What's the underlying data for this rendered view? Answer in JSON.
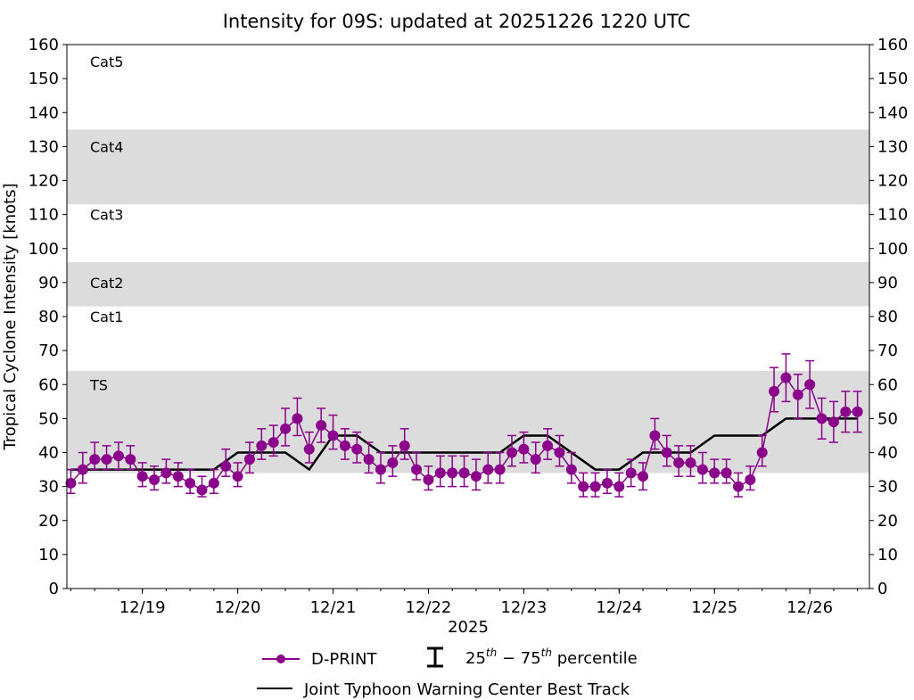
{
  "chart_data": {
    "type": "line",
    "title": "Intensity for 09S: updated at 20251226 1220 UTC",
    "xlabel": "2025",
    "ylabel": "Tropical Cyclone Intensity [knots]",
    "ylim": [
      0,
      160
    ],
    "xlim": [
      "2025-12-18 05:00",
      "2025-12-26 15:00"
    ],
    "yticks": [
      0,
      10,
      20,
      30,
      40,
      50,
      60,
      70,
      80,
      90,
      100,
      110,
      120,
      130,
      140,
      150,
      160
    ],
    "xticks": [
      {
        "t": "2025-12-19 00:00",
        "label": "12/19"
      },
      {
        "t": "2025-12-20 00:00",
        "label": "12/20"
      },
      {
        "t": "2025-12-21 00:00",
        "label": "12/21"
      },
      {
        "t": "2025-12-22 00:00",
        "label": "12/22"
      },
      {
        "t": "2025-12-23 00:00",
        "label": "12/23"
      },
      {
        "t": "2025-12-24 00:00",
        "label": "12/24"
      },
      {
        "t": "2025-12-25 00:00",
        "label": "12/25"
      },
      {
        "t": "2025-12-26 00:00",
        "label": "12/26"
      }
    ],
    "grid": false,
    "legend_placement": "bottom",
    "category_bands": [
      {
        "label": "TS",
        "range": [
          34,
          64
        ],
        "shaded": true,
        "label_at": 60
      },
      {
        "label": "Cat1",
        "range": [
          64,
          83
        ],
        "shaded": false,
        "label_at": 80
      },
      {
        "label": "Cat2",
        "range": [
          83,
          96
        ],
        "shaded": true,
        "label_at": 90
      },
      {
        "label": "Cat3",
        "range": [
          96,
          113
        ],
        "shaded": false,
        "label_at": 110
      },
      {
        "label": "Cat4",
        "range": [
          113,
          135
        ],
        "shaded": true,
        "label_at": 130
      },
      {
        "label": "Cat5",
        "range": [
          135,
          160
        ],
        "shaded": false,
        "label_at": 155
      }
    ],
    "colors": {
      "dprint": "#8b008b",
      "best_track": "#000000",
      "band": "#dcdcdc"
    },
    "series": [
      {
        "name": "D-PRINT",
        "style": "line-marker-errorbar",
        "t": [
          "2025-12-18 06:00",
          "2025-12-18 09:00",
          "2025-12-18 12:00",
          "2025-12-18 15:00",
          "2025-12-18 18:00",
          "2025-12-18 21:00",
          "2025-12-19 00:00",
          "2025-12-19 03:00",
          "2025-12-19 06:00",
          "2025-12-19 09:00",
          "2025-12-19 12:00",
          "2025-12-19 15:00",
          "2025-12-19 18:00",
          "2025-12-19 21:00",
          "2025-12-20 00:00",
          "2025-12-20 03:00",
          "2025-12-20 06:00",
          "2025-12-20 09:00",
          "2025-12-20 12:00",
          "2025-12-20 15:00",
          "2025-12-20 18:00",
          "2025-12-20 21:00",
          "2025-12-21 00:00",
          "2025-12-21 03:00",
          "2025-12-21 06:00",
          "2025-12-21 09:00",
          "2025-12-21 12:00",
          "2025-12-21 15:00",
          "2025-12-21 18:00",
          "2025-12-21 21:00",
          "2025-12-22 00:00",
          "2025-12-22 03:00",
          "2025-12-22 06:00",
          "2025-12-22 09:00",
          "2025-12-22 12:00",
          "2025-12-22 15:00",
          "2025-12-22 18:00",
          "2025-12-22 21:00",
          "2025-12-23 00:00",
          "2025-12-23 03:00",
          "2025-12-23 06:00",
          "2025-12-23 09:00",
          "2025-12-23 12:00",
          "2025-12-23 15:00",
          "2025-12-23 18:00",
          "2025-12-23 21:00",
          "2025-12-24 00:00",
          "2025-12-24 03:00",
          "2025-12-24 06:00",
          "2025-12-24 09:00",
          "2025-12-24 12:00",
          "2025-12-24 15:00",
          "2025-12-24 18:00",
          "2025-12-24 21:00",
          "2025-12-25 00:00",
          "2025-12-25 03:00",
          "2025-12-25 06:00",
          "2025-12-25 09:00",
          "2025-12-25 12:00",
          "2025-12-25 15:00",
          "2025-12-25 18:00",
          "2025-12-25 21:00",
          "2025-12-26 00:00",
          "2025-12-26 03:00",
          "2025-12-26 06:00",
          "2025-12-26 09:00",
          "2025-12-26 12:00"
        ],
        "values": [
          31,
          35,
          38,
          38,
          39,
          38,
          33,
          32,
          34,
          33,
          31,
          29,
          31,
          36,
          33,
          38,
          42,
          43,
          47,
          50,
          41,
          48,
          45,
          42,
          41,
          38,
          35,
          37,
          42,
          35,
          32,
          34,
          34,
          34,
          33,
          35,
          35,
          40,
          41,
          38,
          42,
          40,
          35,
          30,
          30,
          31,
          30,
          34,
          33,
          45,
          40,
          37,
          37,
          35,
          34,
          34,
          30,
          32,
          40,
          58,
          62,
          57,
          60,
          50,
          49,
          52,
          52
        ],
        "p25": [
          28,
          31,
          35,
          35,
          35,
          35,
          30,
          29,
          31,
          30,
          28,
          27,
          28,
          33,
          30,
          34,
          38,
          39,
          42,
          45,
          37,
          43,
          41,
          38,
          37,
          34,
          31,
          33,
          38,
          32,
          29,
          30,
          30,
          30,
          29,
          31,
          31,
          36,
          37,
          34,
          38,
          36,
          31,
          27,
          27,
          28,
          27,
          30,
          29,
          41,
          36,
          33,
          33,
          31,
          31,
          31,
          27,
          29,
          36,
          52,
          55,
          50,
          53,
          44,
          43,
          46,
          46
        ],
        "p75": [
          35,
          40,
          43,
          42,
          43,
          42,
          37,
          36,
          38,
          37,
          35,
          33,
          35,
          41,
          37,
          43,
          47,
          48,
          53,
          56,
          46,
          53,
          51,
          47,
          46,
          43,
          40,
          42,
          47,
          40,
          36,
          39,
          39,
          39,
          38,
          40,
          40,
          45,
          46,
          43,
          47,
          45,
          40,
          34,
          34,
          35,
          34,
          38,
          37,
          50,
          45,
          42,
          42,
          40,
          38,
          38,
          34,
          36,
          45,
          65,
          69,
          63,
          67,
          56,
          55,
          58,
          58
        ]
      },
      {
        "name": "Joint Typhoon Warning Center Best Track",
        "style": "line",
        "t": [
          "2025-12-18 06:00",
          "2025-12-19 18:00",
          "2025-12-20 00:00",
          "2025-12-20 12:00",
          "2025-12-20 18:00",
          "2025-12-21 00:00",
          "2025-12-21 06:00",
          "2025-12-21 12:00",
          "2025-12-22 18:00",
          "2025-12-23 00:00",
          "2025-12-23 06:00",
          "2025-12-23 18:00",
          "2025-12-24 00:00",
          "2025-12-24 06:00",
          "2025-12-24 18:00",
          "2025-12-25 00:00",
          "2025-12-25 12:00",
          "2025-12-25 18:00",
          "2025-12-26 12:00"
        ],
        "values": [
          35,
          35,
          40,
          40,
          35,
          45,
          45,
          40,
          40,
          45,
          45,
          35,
          35,
          40,
          40,
          45,
          45,
          50,
          50
        ]
      }
    ]
  },
  "legend": {
    "dprint": "D-PRINT",
    "percentile_base1": "25",
    "percentile_sup1": "th",
    "percentile_dash": " − ",
    "percentile_base2": "75",
    "percentile_sup2": "th",
    "percentile_tail": " percentile",
    "best_track": "Joint Typhoon Warning Center Best Track"
  }
}
